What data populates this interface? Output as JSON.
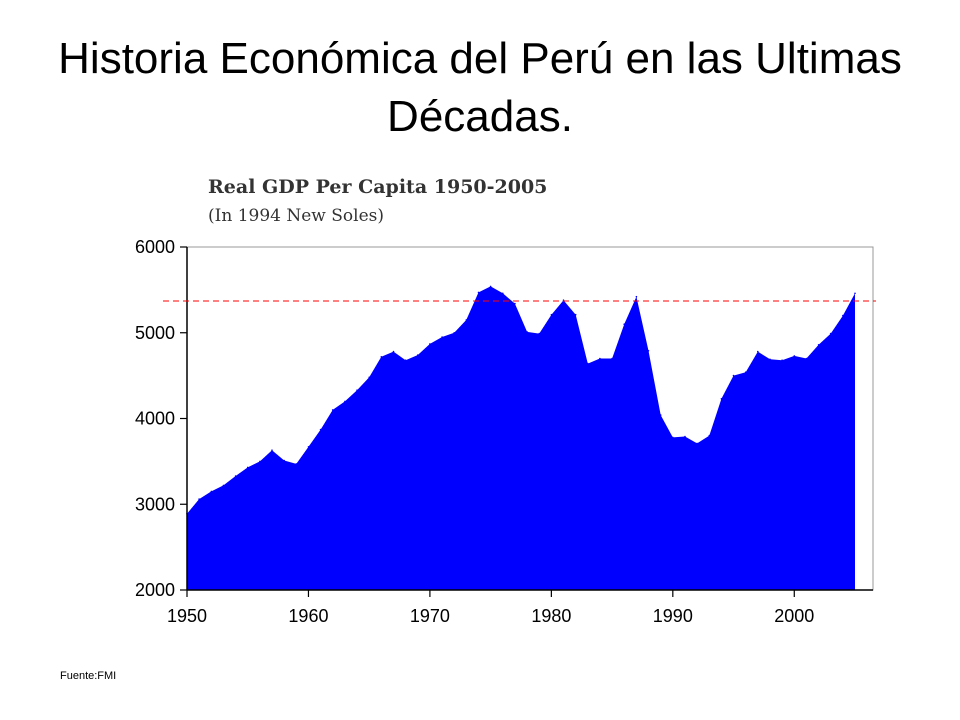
{
  "slide": {
    "title": "Historia Económica del Perú en las Ultimas Décadas.",
    "source": "Fuente:FMI"
  },
  "colors": {
    "area_fill": "#0000ff",
    "reference_line": "#ff0000",
    "frame": "#999999"
  },
  "chart_data": {
    "type": "area",
    "title": "Real GDP Per Capita 1950-2005",
    "subtitle": "(In 1994 New Soles)",
    "xlabel": "",
    "ylabel": "",
    "xlim": [
      1950,
      2005
    ],
    "ylim": [
      2000,
      6000
    ],
    "x_ticks": [
      1950,
      1960,
      1970,
      1980,
      1990,
      2000
    ],
    "y_ticks": [
      2000,
      3000,
      4000,
      5000,
      6000
    ],
    "grid": false,
    "reference_line": {
      "style": "dashed",
      "value": 5370
    },
    "series": [
      {
        "x": [
          1950,
          1951,
          1952,
          1953,
          1954,
          1955,
          1956,
          1957,
          1958,
          1959,
          1960,
          1961,
          1962,
          1963,
          1964,
          1965,
          1966,
          1967,
          1968,
          1969,
          1970,
          1971,
          1972,
          1973,
          1974,
          1975,
          1976,
          1977,
          1978,
          1979,
          1980,
          1981,
          1982,
          1983,
          1984,
          1985,
          1986,
          1987,
          1988,
          1989,
          1990,
          1991,
          1992,
          1993,
          1994,
          1995,
          1996,
          1997,
          1998,
          1999,
          2000,
          2001,
          2002,
          2003,
          2004,
          2005
        ],
        "values": [
          2890,
          3060,
          3150,
          3220,
          3330,
          3430,
          3500,
          3630,
          3510,
          3470,
          3670,
          3870,
          4100,
          4200,
          4330,
          4480,
          4720,
          4780,
          4680,
          4740,
          4870,
          4950,
          5000,
          5150,
          5470,
          5540,
          5460,
          5340,
          5010,
          4990,
          5210,
          5380,
          5210,
          4640,
          4700,
          4700,
          5100,
          5420,
          4790,
          4040,
          3780,
          3790,
          3710,
          3800,
          4230,
          4500,
          4540,
          4780,
          4690,
          4680,
          4730,
          4700,
          4860,
          4990,
          5200,
          5460
        ]
      }
    ]
  }
}
